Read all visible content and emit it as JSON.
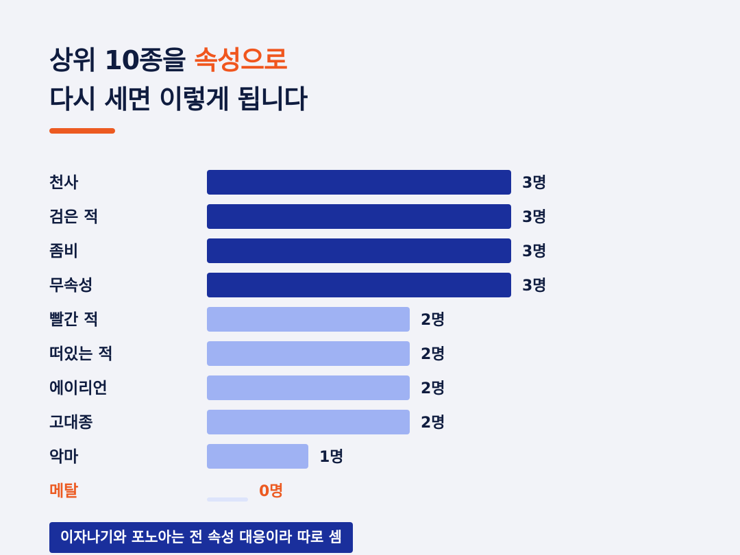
{
  "title": {
    "line1_prefix": "상위 10종을 ",
    "line1_accent": "속성으로",
    "line2": "다시 세면 이렇게 됩니다"
  },
  "colors": {
    "background": "#f2f3f8",
    "text": "#0f1c3f",
    "accent": "#ec5a21",
    "bar_high": "#1a2f9c",
    "bar_mid": "#9fb2f3",
    "bar_zero": "#dde4fb"
  },
  "chart_data": {
    "type": "bar",
    "orientation": "horizontal",
    "categories": [
      "천사",
      "검은 적",
      "좀비",
      "무속성",
      "빨간 적",
      "떠있는 적",
      "에이리언",
      "고대종",
      "악마",
      "메탈"
    ],
    "values": [
      3,
      3,
      3,
      3,
      2,
      2,
      2,
      2,
      1,
      0
    ],
    "value_labels": [
      "3명",
      "3명",
      "3명",
      "3명",
      "2명",
      "2명",
      "2명",
      "2명",
      "1명",
      "0명"
    ],
    "highlight": [
      "메탈"
    ],
    "xlim": [
      0,
      3
    ]
  },
  "footnote": "이자나기와 포노아는 전 속성 대응이라 따로 셈"
}
